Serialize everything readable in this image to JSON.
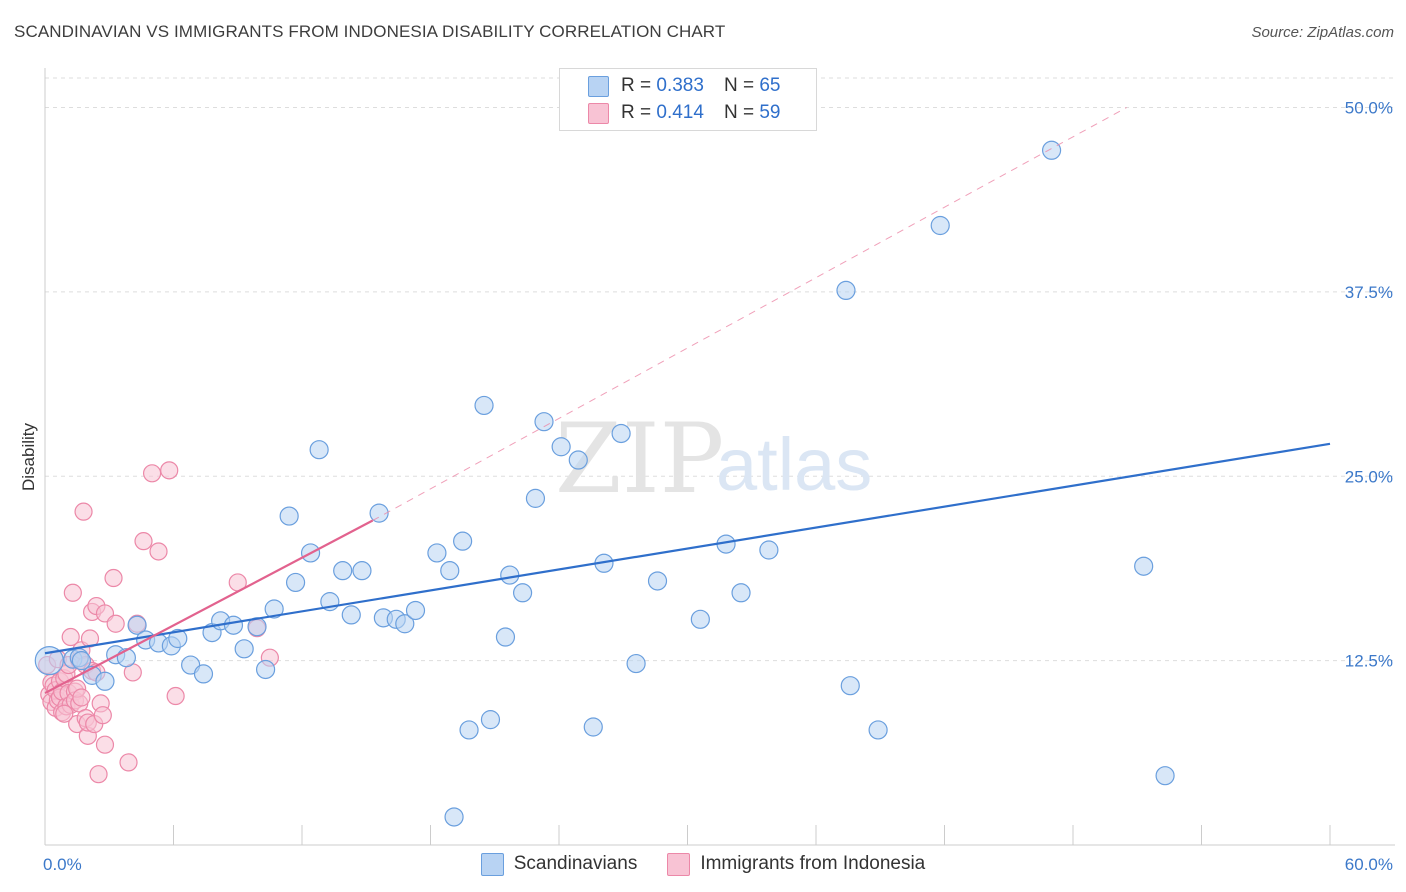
{
  "title": "SCANDINAVIAN VS IMMIGRANTS FROM INDONESIA DISABILITY CORRELATION CHART",
  "source": "Source: ZipAtlas.com",
  "watermark": {
    "zip": "ZIP",
    "atlas": "atlas"
  },
  "legend": {
    "series1": {
      "r_label": "R =",
      "r_value": "0.383",
      "n_label": "N =",
      "n_value": "65"
    },
    "series2": {
      "r_label": "R =",
      "r_value": "0.414",
      "n_label": "N =",
      "n_value": "59"
    }
  },
  "colors": {
    "blue_fill": "#b8d3f3",
    "blue_stroke": "#6a9fde",
    "blue_line": "#2f6fcb",
    "pink_fill": "#f8c3d4",
    "pink_stroke": "#ec88a8",
    "pink_line": "#e2628e",
    "grid": "#dddddd"
  },
  "chart_data": {
    "type": "scatter",
    "title": "SCANDINAVIAN VS IMMIGRANTS FROM INDONESIA DISABILITY CORRELATION CHART",
    "xlabel": "",
    "ylabel": "Disability",
    "xlim": [
      0,
      60
    ],
    "ylim": [
      0,
      52
    ],
    "x_tick_labels": [
      "0.0%",
      "60.0%"
    ],
    "y_ticks": [
      12.5,
      25.0,
      37.5,
      50.0
    ],
    "y_tick_labels": [
      "12.5%",
      "25.0%",
      "37.5%",
      "50.0%"
    ],
    "series": [
      {
        "name": "Scandinavians",
        "r": 0.383,
        "n": 65,
        "trend": {
          "x": [
            0,
            60
          ],
          "y": [
            13.0,
            27.2
          ]
        },
        "points": [
          [
            0.2,
            12.5
          ],
          [
            1.3,
            12.6
          ],
          [
            1.6,
            12.7
          ],
          [
            1.7,
            12.5
          ],
          [
            2.2,
            11.5
          ],
          [
            2.8,
            11.1
          ],
          [
            3.3,
            12.9
          ],
          [
            3.8,
            12.7
          ],
          [
            4.3,
            14.9
          ],
          [
            4.7,
            13.9
          ],
          [
            5.3,
            13.7
          ],
          [
            5.9,
            13.5
          ],
          [
            6.2,
            14.0
          ],
          [
            6.8,
            12.2
          ],
          [
            7.4,
            11.6
          ],
          [
            7.8,
            14.4
          ],
          [
            8.2,
            15.2
          ],
          [
            8.8,
            14.9
          ],
          [
            9.3,
            13.3
          ],
          [
            9.9,
            14.8
          ],
          [
            10.3,
            11.9
          ],
          [
            10.7,
            16.0
          ],
          [
            11.4,
            22.3
          ],
          [
            11.7,
            17.8
          ],
          [
            12.4,
            19.8
          ],
          [
            12.8,
            26.8
          ],
          [
            13.3,
            16.5
          ],
          [
            13.9,
            18.6
          ],
          [
            14.3,
            15.6
          ],
          [
            14.8,
            18.6
          ],
          [
            15.6,
            22.5
          ],
          [
            15.8,
            15.4
          ],
          [
            16.4,
            15.3
          ],
          [
            16.8,
            15.0
          ],
          [
            17.3,
            15.9
          ],
          [
            18.3,
            19.8
          ],
          [
            18.9,
            18.6
          ],
          [
            19.5,
            20.6
          ],
          [
            19.8,
            7.8
          ],
          [
            20.5,
            29.8
          ],
          [
            20.8,
            8.5
          ],
          [
            21.5,
            14.1
          ],
          [
            21.7,
            18.3
          ],
          [
            22.3,
            17.1
          ],
          [
            22.9,
            23.5
          ],
          [
            23.3,
            28.7
          ],
          [
            24.1,
            27.0
          ],
          [
            24.9,
            26.1
          ],
          [
            25.6,
            8.0
          ],
          [
            26.1,
            19.1
          ],
          [
            26.9,
            27.9
          ],
          [
            27.6,
            12.3
          ],
          [
            28.6,
            17.9
          ],
          [
            30.6,
            15.3
          ],
          [
            31.8,
            20.4
          ],
          [
            32.5,
            17.1
          ],
          [
            33.8,
            20.0
          ],
          [
            37.4,
            37.6
          ],
          [
            37.6,
            10.8
          ],
          [
            38.9,
            7.8
          ],
          [
            41.8,
            42.0
          ],
          [
            47.0,
            47.1
          ],
          [
            51.3,
            18.9
          ],
          [
            52.3,
            4.7
          ],
          [
            19.1,
            1.9
          ]
        ]
      },
      {
        "name": "Immigrants from Indonesia",
        "r": 0.414,
        "n": 59,
        "trend": {
          "x": [
            0,
            15.3
          ],
          "y": [
            10.3,
            22.0
          ]
        },
        "trend_extended": {
          "x": [
            15.3,
            50.5
          ],
          "y": [
            22.0,
            50.0
          ]
        },
        "points": [
          [
            0.1,
            12.2
          ],
          [
            0.2,
            10.2
          ],
          [
            0.3,
            9.7
          ],
          [
            0.3,
            11.0
          ],
          [
            0.4,
            10.8
          ],
          [
            0.5,
            9.3
          ],
          [
            0.5,
            10.5
          ],
          [
            0.6,
            12.6
          ],
          [
            0.6,
            9.8
          ],
          [
            0.7,
            11.1
          ],
          [
            0.7,
            10.0
          ],
          [
            0.8,
            9.0
          ],
          [
            0.8,
            10.4
          ],
          [
            0.9,
            11.3
          ],
          [
            1.0,
            9.4
          ],
          [
            1.0,
            11.6
          ],
          [
            1.1,
            10.3
          ],
          [
            1.1,
            12.2
          ],
          [
            1.2,
            14.1
          ],
          [
            1.2,
            9.5
          ],
          [
            1.3,
            17.1
          ],
          [
            1.4,
            10.4
          ],
          [
            1.4,
            9.8
          ],
          [
            1.5,
            8.2
          ],
          [
            1.6,
            12.5
          ],
          [
            1.6,
            9.6
          ],
          [
            1.7,
            13.2
          ],
          [
            1.8,
            22.6
          ],
          [
            1.9,
            12.2
          ],
          [
            1.9,
            8.6
          ],
          [
            2.0,
            7.4
          ],
          [
            2.0,
            8.3
          ],
          [
            2.1,
            14.0
          ],
          [
            2.2,
            11.8
          ],
          [
            2.2,
            15.8
          ],
          [
            2.3,
            8.2
          ],
          [
            2.4,
            16.2
          ],
          [
            2.4,
            11.7
          ],
          [
            2.5,
            4.8
          ],
          [
            2.6,
            9.6
          ],
          [
            2.7,
            8.8
          ],
          [
            2.8,
            6.8
          ],
          [
            2.8,
            15.7
          ],
          [
            3.2,
            18.1
          ],
          [
            3.3,
            15.0
          ],
          [
            3.9,
            5.6
          ],
          [
            4.1,
            11.7
          ],
          [
            4.3,
            15.0
          ],
          [
            4.6,
            20.6
          ],
          [
            5.0,
            25.2
          ],
          [
            5.3,
            19.9
          ],
          [
            5.8,
            25.4
          ],
          [
            6.1,
            10.1
          ],
          [
            9.0,
            17.8
          ],
          [
            9.9,
            14.7
          ],
          [
            10.5,
            12.7
          ],
          [
            1.5,
            10.6
          ],
          [
            0.9,
            8.9
          ],
          [
            1.7,
            10.0
          ]
        ]
      }
    ]
  },
  "bottom_legend": {
    "series1": "Scandinavians",
    "series2": "Immigrants from Indonesia"
  }
}
